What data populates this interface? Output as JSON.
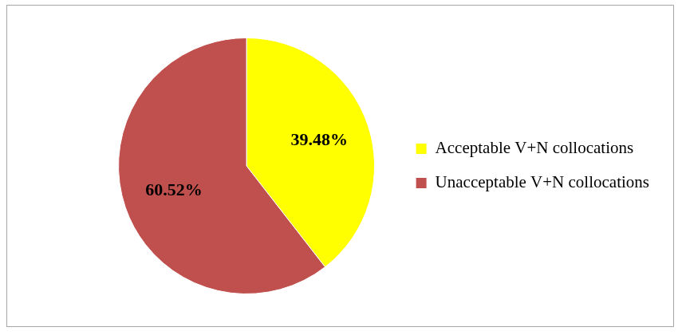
{
  "chart_data": {
    "type": "pie",
    "categories": [
      "Acceptable V+N collocations",
      "Unacceptable V+N collocations"
    ],
    "values": [
      39.48,
      60.52
    ],
    "value_labels": [
      "39.48%",
      "60.52%"
    ],
    "colors": [
      "#ffff00",
      "#c0504d"
    ],
    "data_labels": true,
    "legend": "right"
  }
}
